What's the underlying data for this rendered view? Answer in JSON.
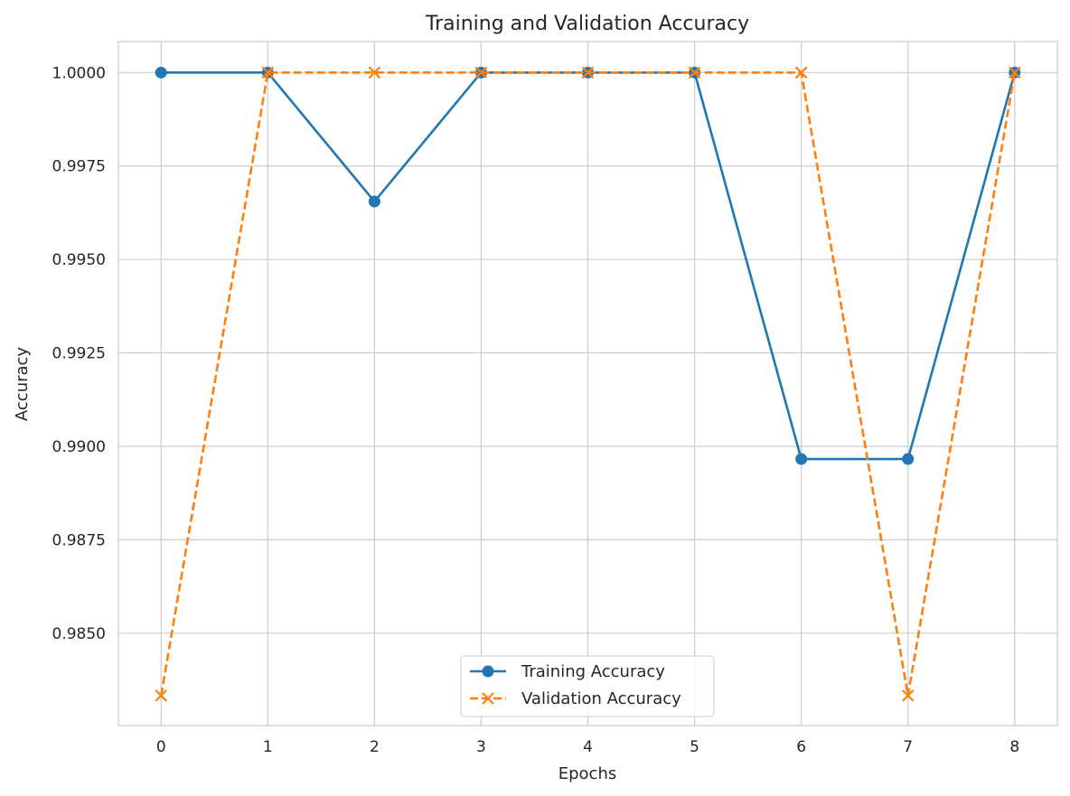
{
  "chart_data": {
    "type": "line",
    "title": "Training and Validation Accuracy",
    "xlabel": "Epochs",
    "ylabel": "Accuracy",
    "x": [
      0,
      1,
      2,
      3,
      4,
      5,
      6,
      7,
      8
    ],
    "xticks": [
      "0",
      "1",
      "2",
      "3",
      "4",
      "5",
      "6",
      "7",
      "8"
    ],
    "yticks": [
      0.985,
      0.9875,
      0.99,
      0.9925,
      0.995,
      0.9975,
      1.0
    ],
    "ytick_labels": [
      "0.9850",
      "0.9875",
      "0.9900",
      "0.9925",
      "0.9950",
      "0.9975",
      "1.0000"
    ],
    "xlim": [
      -0.4,
      8.4
    ],
    "ylim": [
      0.98253,
      1.00083
    ],
    "grid": true,
    "legend_position": "lower center",
    "series": [
      {
        "name": "Training Accuracy",
        "values": [
          1.0,
          1.0,
          0.99655,
          1.0,
          1.0,
          1.0,
          0.98966,
          0.98966,
          1.0
        ],
        "color": "#1f77b4",
        "line_style": "solid",
        "marker": "circle"
      },
      {
        "name": "Validation Accuracy",
        "values": [
          0.98333,
          1.0,
          1.0,
          1.0,
          1.0,
          1.0,
          1.0,
          0.98333,
          1.0
        ],
        "color": "#ff7f0e",
        "line_style": "dashed",
        "marker": "x"
      }
    ]
  }
}
